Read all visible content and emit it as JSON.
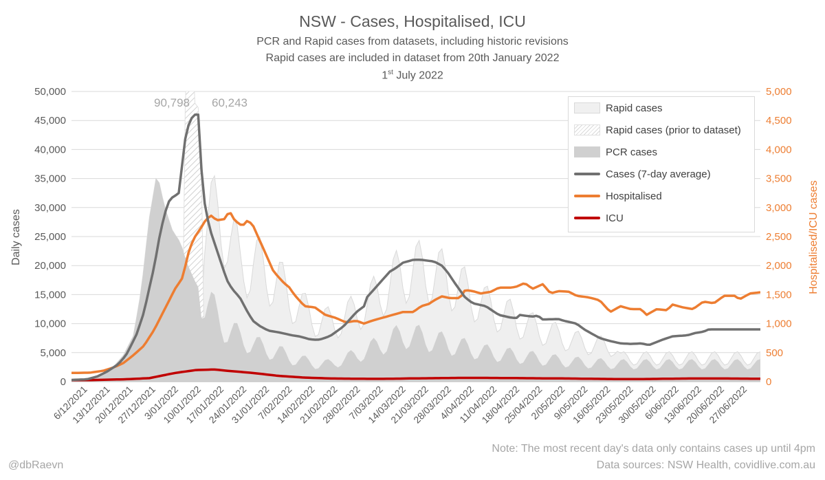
{
  "chart_data": {
    "type": "area",
    "title": "NSW - Cases, Hospitalised, ICU",
    "subtitle_lines": [
      "PCR and Rapid cases from datasets, including historic revisions",
      "Rapid cases are included in dataset from 20th January 2022"
    ],
    "date_day": "1",
    "date_suffix": "st",
    "date_rest": " July 2022",
    "ylabel": "Daily cases",
    "ylabel_right": "Hospitalised/ICU cases",
    "ylim": [
      0,
      50000
    ],
    "ylim_right": [
      0,
      5000
    ],
    "yticks": [
      "0",
      "5,000",
      "10,000",
      "15,000",
      "20,000",
      "25,000",
      "30,000",
      "35,000",
      "40,000",
      "45,000",
      "50,000"
    ],
    "yticks_right": [
      "0",
      "500",
      "1,000",
      "1,500",
      "2,000",
      "2,500",
      "3,000",
      "3,500",
      "4,000",
      "4,500",
      "5,000"
    ],
    "xticks": [
      "6/12/2021",
      "13/12/2021",
      "20/12/2021",
      "27/12/2021",
      "3/01/2022",
      "10/01/2022",
      "17/01/2022",
      "24/01/2022",
      "31/01/2022",
      "7/02/2022",
      "14/02/2022",
      "21/02/2022",
      "28/02/2022",
      "7/03/2022",
      "14/03/2022",
      "21/03/2022",
      "28/03/2022",
      "4/04/2022",
      "11/04/2022",
      "18/04/2022",
      "25/04/2022",
      "2/05/2022",
      "9/05/2022",
      "16/05/2022",
      "23/05/2022",
      "30/05/2022",
      "6/06/2022",
      "13/06/2022",
      "20/06/2022",
      "27/06/2022"
    ],
    "annotations": [
      "90,798",
      "60,243"
    ],
    "annotation_values": [
      90798,
      60243
    ],
    "start_date": "2021-12-01",
    "days": 213,
    "series": [
      {
        "name": "Rapid cases",
        "axis": "left",
        "keypoints": [
          [
            50,
            0
          ],
          [
            51,
            14000
          ],
          [
            55,
            16000
          ],
          [
            60,
            18000
          ],
          [
            65,
            12000
          ],
          [
            70,
            14000
          ],
          [
            75,
            13000
          ],
          [
            80,
            12000
          ],
          [
            85,
            10000
          ],
          [
            90,
            8500
          ],
          [
            95,
            7500
          ],
          [
            100,
            7000
          ],
          [
            105,
            7000
          ],
          [
            110,
            7500
          ],
          [
            115,
            8000
          ],
          [
            120,
            9000
          ],
          [
            125,
            10000
          ],
          [
            130,
            11000
          ],
          [
            135,
            11500
          ],
          [
            140,
            11500
          ],
          [
            145,
            11000
          ],
          [
            150,
            10000
          ],
          [
            155,
            9000
          ],
          [
            160,
            8000
          ],
          [
            165,
            7000
          ],
          [
            170,
            6500
          ],
          [
            175,
            5500
          ],
          [
            180,
            5000
          ],
          [
            185,
            4500
          ],
          [
            190,
            4000
          ],
          [
            195,
            3500
          ],
          [
            200,
            3200
          ],
          [
            205,
            3000
          ],
          [
            210,
            3000
          ],
          [
            212,
            1000
          ]
        ],
        "weekly_amplitude": 0.28
      },
      {
        "name": "Rapid cases (prior to dataset)",
        "axis": "left",
        "keypoints": [
          [
            43,
            0
          ],
          [
            44,
            28000
          ],
          [
            45,
            45000
          ],
          [
            46,
            48000
          ],
          [
            47,
            32000
          ],
          [
            48,
            30000
          ],
          [
            49,
            31000
          ],
          [
            50,
            30000
          ],
          [
            51,
            0
          ]
        ]
      },
      {
        "name": "PCR cases",
        "axis": "left",
        "keypoints": [
          [
            0,
            200
          ],
          [
            7,
            400
          ],
          [
            14,
            1500
          ],
          [
            20,
            4500
          ],
          [
            24,
            8000
          ],
          [
            27,
            16000
          ],
          [
            30,
            28000
          ],
          [
            33,
            36000
          ],
          [
            36,
            30000
          ],
          [
            39,
            26000
          ],
          [
            42,
            24000
          ],
          [
            45,
            20000
          ],
          [
            48,
            17000
          ],
          [
            52,
            14000
          ],
          [
            56,
            11000
          ],
          [
            60,
            9000
          ],
          [
            65,
            7500
          ],
          [
            70,
            6500
          ],
          [
            75,
            5500
          ],
          [
            80,
            5000
          ],
          [
            85,
            4000
          ],
          [
            90,
            3500
          ],
          [
            95,
            3000
          ],
          [
            100,
            3000
          ],
          [
            105,
            3800
          ],
          [
            110,
            4500
          ],
          [
            115,
            5500
          ],
          [
            120,
            6500
          ],
          [
            125,
            7500
          ],
          [
            130,
            8000
          ],
          [
            135,
            7500
          ],
          [
            140,
            7000
          ],
          [
            145,
            6500
          ],
          [
            150,
            6000
          ],
          [
            155,
            5500
          ],
          [
            160,
            5000
          ],
          [
            170,
            4500
          ],
          [
            180,
            4000
          ],
          [
            190,
            3500
          ],
          [
            200,
            3200
          ],
          [
            212,
            3000
          ]
        ],
        "weekly_amplitude": 0.3
      },
      {
        "name": "Cases (7-day average)",
        "axis": "left",
        "keypoints": [
          [
            0,
            300
          ],
          [
            6,
            400
          ],
          [
            10,
            900
          ],
          [
            14,
            1800
          ],
          [
            18,
            3000
          ],
          [
            21,
            4500
          ],
          [
            25,
            8000
          ],
          [
            28,
            12000
          ],
          [
            30,
            16000
          ],
          [
            32,
            20000
          ],
          [
            34,
            25000
          ],
          [
            36,
            29000
          ],
          [
            38,
            31500
          ],
          [
            40,
            32000
          ],
          [
            41,
            32500
          ],
          [
            42,
            32500
          ],
          [
            43,
            39500
          ],
          [
            44,
            42000
          ],
          [
            45,
            44000
          ],
          [
            46,
            45000
          ],
          [
            47,
            46000
          ],
          [
            48,
            46000
          ],
          [
            49,
            46000
          ],
          [
            50,
            37500
          ],
          [
            51,
            32000
          ],
          [
            52,
            29000
          ],
          [
            54,
            25500
          ],
          [
            57,
            21500
          ],
          [
            60,
            17500
          ],
          [
            62,
            16000
          ],
          [
            65,
            14500
          ],
          [
            68,
            12000
          ],
          [
            70,
            10500
          ],
          [
            73,
            9500
          ],
          [
            76,
            8800
          ],
          [
            80,
            8500
          ],
          [
            85,
            8000
          ],
          [
            88,
            7800
          ],
          [
            92,
            7300
          ],
          [
            95,
            7200
          ],
          [
            97,
            7400
          ],
          [
            100,
            7900
          ],
          [
            105,
            9500
          ],
          [
            110,
            12000
          ],
          [
            113,
            13000
          ],
          [
            114,
            14500
          ],
          [
            118,
            16500
          ],
          [
            121,
            18000
          ],
          [
            123,
            19000
          ],
          [
            125,
            19500
          ],
          [
            128,
            20500
          ],
          [
            132,
            21000
          ],
          [
            135,
            21000
          ],
          [
            140,
            20700
          ],
          [
            143,
            20000
          ],
          [
            145,
            19000
          ],
          [
            148,
            17000
          ],
          [
            152,
            14500
          ],
          [
            155,
            13500
          ],
          [
            160,
            13000
          ],
          [
            165,
            11500
          ],
          [
            170,
            11000
          ],
          [
            172,
            11000
          ],
          [
            173,
            11500
          ],
          [
            178,
            11200
          ],
          [
            180,
            11400
          ],
          [
            182,
            10700
          ],
          [
            188,
            10800
          ],
          [
            190,
            10500
          ],
          [
            195,
            10000
          ],
          [
            198,
            9000
          ],
          [
            200,
            8500
          ],
          [
            204,
            7500
          ],
          [
            208,
            7000
          ],
          [
            212,
            6600
          ],
          [
            216,
            6500
          ],
          [
            220,
            6600
          ],
          [
            223,
            6300
          ],
          [
            228,
            7200
          ],
          [
            232,
            7800
          ],
          [
            238,
            8000
          ],
          [
            241,
            8400
          ],
          [
            244,
            8600
          ],
          [
            246,
            9000
          ]
        ]
      },
      {
        "name": "Hospitalised",
        "axis": "right",
        "keypoints": [
          [
            0,
            150
          ],
          [
            7,
            155
          ],
          [
            12,
            185
          ],
          [
            16,
            240
          ],
          [
            20,
            320
          ],
          [
            24,
            460
          ],
          [
            28,
            620
          ],
          [
            32,
            900
          ],
          [
            36,
            1250
          ],
          [
            40,
            1600
          ],
          [
            43,
            1800
          ],
          [
            45,
            2200
          ],
          [
            47,
            2450
          ],
          [
            50,
            2650
          ],
          [
            52,
            2800
          ],
          [
            54,
            2860
          ],
          [
            56,
            2780
          ],
          [
            59,
            2800
          ],
          [
            61,
            2940
          ],
          [
            63,
            2780
          ],
          [
            66,
            2680
          ],
          [
            68,
            2780
          ],
          [
            70,
            2700
          ],
          [
            72,
            2500
          ],
          [
            74,
            2300
          ],
          [
            76,
            2100
          ],
          [
            78,
            1900
          ],
          [
            80,
            1800
          ],
          [
            82,
            1700
          ],
          [
            84,
            1630
          ],
          [
            86,
            1500
          ],
          [
            90,
            1300
          ],
          [
            94,
            1280
          ],
          [
            98,
            1150
          ],
          [
            102,
            1100
          ],
          [
            106,
            1020
          ],
          [
            110,
            1050
          ],
          [
            113,
            1000
          ],
          [
            116,
            1050
          ],
          [
            120,
            1100
          ],
          [
            124,
            1150
          ],
          [
            128,
            1200
          ],
          [
            132,
            1200
          ],
          [
            135,
            1300
          ],
          [
            138,
            1340
          ],
          [
            140,
            1400
          ],
          [
            143,
            1470
          ],
          [
            146,
            1440
          ],
          [
            150,
            1440
          ],
          [
            152,
            1580
          ],
          [
            155,
            1560
          ],
          [
            158,
            1520
          ],
          [
            162,
            1550
          ],
          [
            165,
            1620
          ],
          [
            170,
            1620
          ],
          [
            172,
            1640
          ],
          [
            175,
            1700
          ],
          [
            178,
            1600
          ],
          [
            182,
            1680
          ],
          [
            185,
            1520
          ],
          [
            188,
            1560
          ],
          [
            192,
            1550
          ],
          [
            195,
            1480
          ],
          [
            200,
            1450
          ],
          [
            204,
            1400
          ],
          [
            208,
            1200
          ],
          [
            212,
            1300
          ],
          [
            216,
            1250
          ],
          [
            220,
            1250
          ],
          [
            222,
            1150
          ],
          [
            226,
            1250
          ],
          [
            230,
            1230
          ],
          [
            232,
            1330
          ],
          [
            236,
            1280
          ],
          [
            240,
            1250
          ],
          [
            244,
            1380
          ],
          [
            248,
            1350
          ],
          [
            252,
            1480
          ],
          [
            256,
            1480
          ],
          [
            258,
            1420
          ],
          [
            262,
            1520
          ],
          [
            266,
            1540
          ]
        ]
      },
      {
        "name": "ICU",
        "axis": "right",
        "keypoints": [
          [
            0,
            20
          ],
          [
            20,
            40
          ],
          [
            30,
            60
          ],
          [
            40,
            150
          ],
          [
            48,
            200
          ],
          [
            55,
            210
          ],
          [
            62,
            180
          ],
          [
            70,
            150
          ],
          [
            80,
            100
          ],
          [
            90,
            70
          ],
          [
            100,
            55
          ],
          [
            110,
            50
          ],
          [
            120,
            48
          ],
          [
            130,
            55
          ],
          [
            140,
            60
          ],
          [
            150,
            65
          ],
          [
            160,
            65
          ],
          [
            170,
            62
          ],
          [
            180,
            58
          ],
          [
            190,
            55
          ],
          [
            200,
            50
          ],
          [
            210,
            45
          ],
          [
            220,
            45
          ],
          [
            230,
            50
          ],
          [
            240,
            55
          ],
          [
            250,
            55
          ],
          [
            266,
            50
          ]
        ]
      }
    ]
  },
  "legend": {
    "items": [
      "Rapid cases",
      "Rapid cases (prior to dataset)",
      "PCR cases",
      "Cases (7-day average)",
      "Hospitalised",
      "ICU"
    ]
  },
  "colors": {
    "rapid": "#efefef",
    "prior_hatch": "#d9d9d9",
    "pcr": "#d0d0d0",
    "avg": "#707070",
    "hosp": "#ed7d31",
    "icu": "#c00000",
    "grid": "#d9d9d9"
  },
  "footer": {
    "handle": "@dbRaevn",
    "note": "Note: The most recent day's data only contains cases up until 4pm",
    "sources": "Data sources: NSW Health, covidlive.com.au"
  }
}
